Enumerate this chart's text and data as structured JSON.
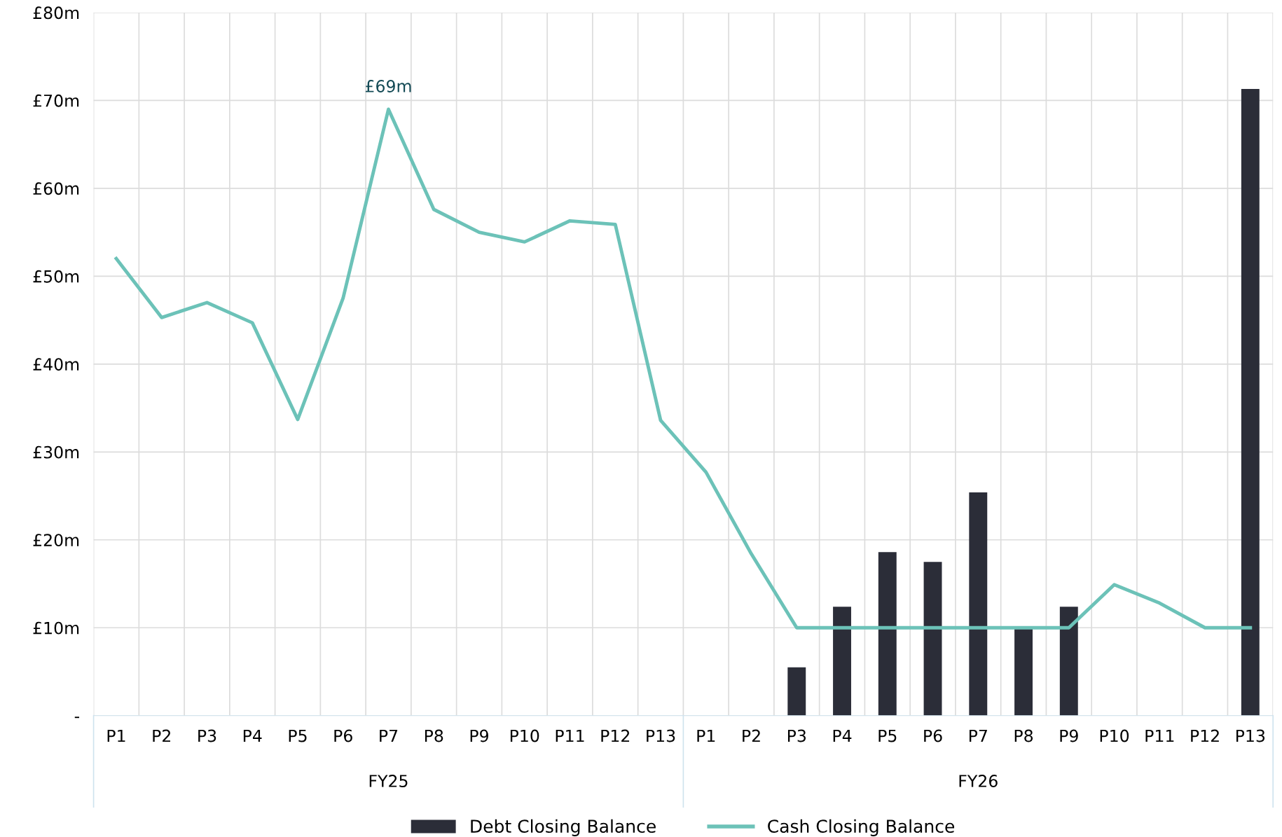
{
  "chart_data": {
    "type": "bar",
    "categories": [
      "P1",
      "P2",
      "P3",
      "P4",
      "P5",
      "P6",
      "P7",
      "P8",
      "P9",
      "P10",
      "P11",
      "P12",
      "P13",
      "P1",
      "P2",
      "P3",
      "P4",
      "P5",
      "P6",
      "P7",
      "P8",
      "P9",
      "P10",
      "P11",
      "P12",
      "P13"
    ],
    "series": [
      {
        "name": "Debt Closing Balance",
        "color": "#2b2d38",
        "values": [
          null,
          null,
          null,
          null,
          null,
          null,
          null,
          null,
          null,
          null,
          null,
          null,
          null,
          null,
          null,
          5.5,
          12.4,
          18.6,
          17.5,
          25.4,
          10,
          12.4,
          null,
          null,
          null,
          71.3
        ]
      },
      {
        "name": "Cash Closing Balance",
        "type": "line",
        "color": "#6cc2b8",
        "values": [
          52.0,
          45.3,
          47.0,
          44.7,
          33.7,
          47.5,
          69,
          57.6,
          55.0,
          53.9,
          56.3,
          55.9,
          33.6,
          27.7,
          18.4,
          10,
          10,
          10,
          10,
          10,
          10,
          10,
          14.9,
          12.8,
          10,
          10
        ],
        "value_labels": [
          null,
          null,
          null,
          null,
          null,
          null,
          "£69m",
          null,
          null,
          null,
          null,
          null,
          null,
          null,
          null,
          null,
          null,
          null,
          null,
          null,
          null,
          null,
          null,
          null,
          null,
          null
        ]
      }
    ],
    "annotations": [
      "FY25",
      "FY26"
    ],
    "ylim": [
      0,
      80
    ],
    "yticks": [
      {
        "value": 0,
        "label": "-"
      },
      {
        "value": 10,
        "label": "£10m"
      },
      {
        "value": 20,
        "label": "£20m"
      },
      {
        "value": 30,
        "label": "£30m"
      },
      {
        "value": 40,
        "label": "£40m"
      },
      {
        "value": 50,
        "label": "£50m"
      },
      {
        "value": 60,
        "label": "£60m"
      },
      {
        "value": 70,
        "label": "£70m"
      },
      {
        "value": 80,
        "label": "£80m"
      }
    ],
    "grid": true,
    "legend": "bottom",
    "line_style": "solid",
    "marker": "none"
  }
}
